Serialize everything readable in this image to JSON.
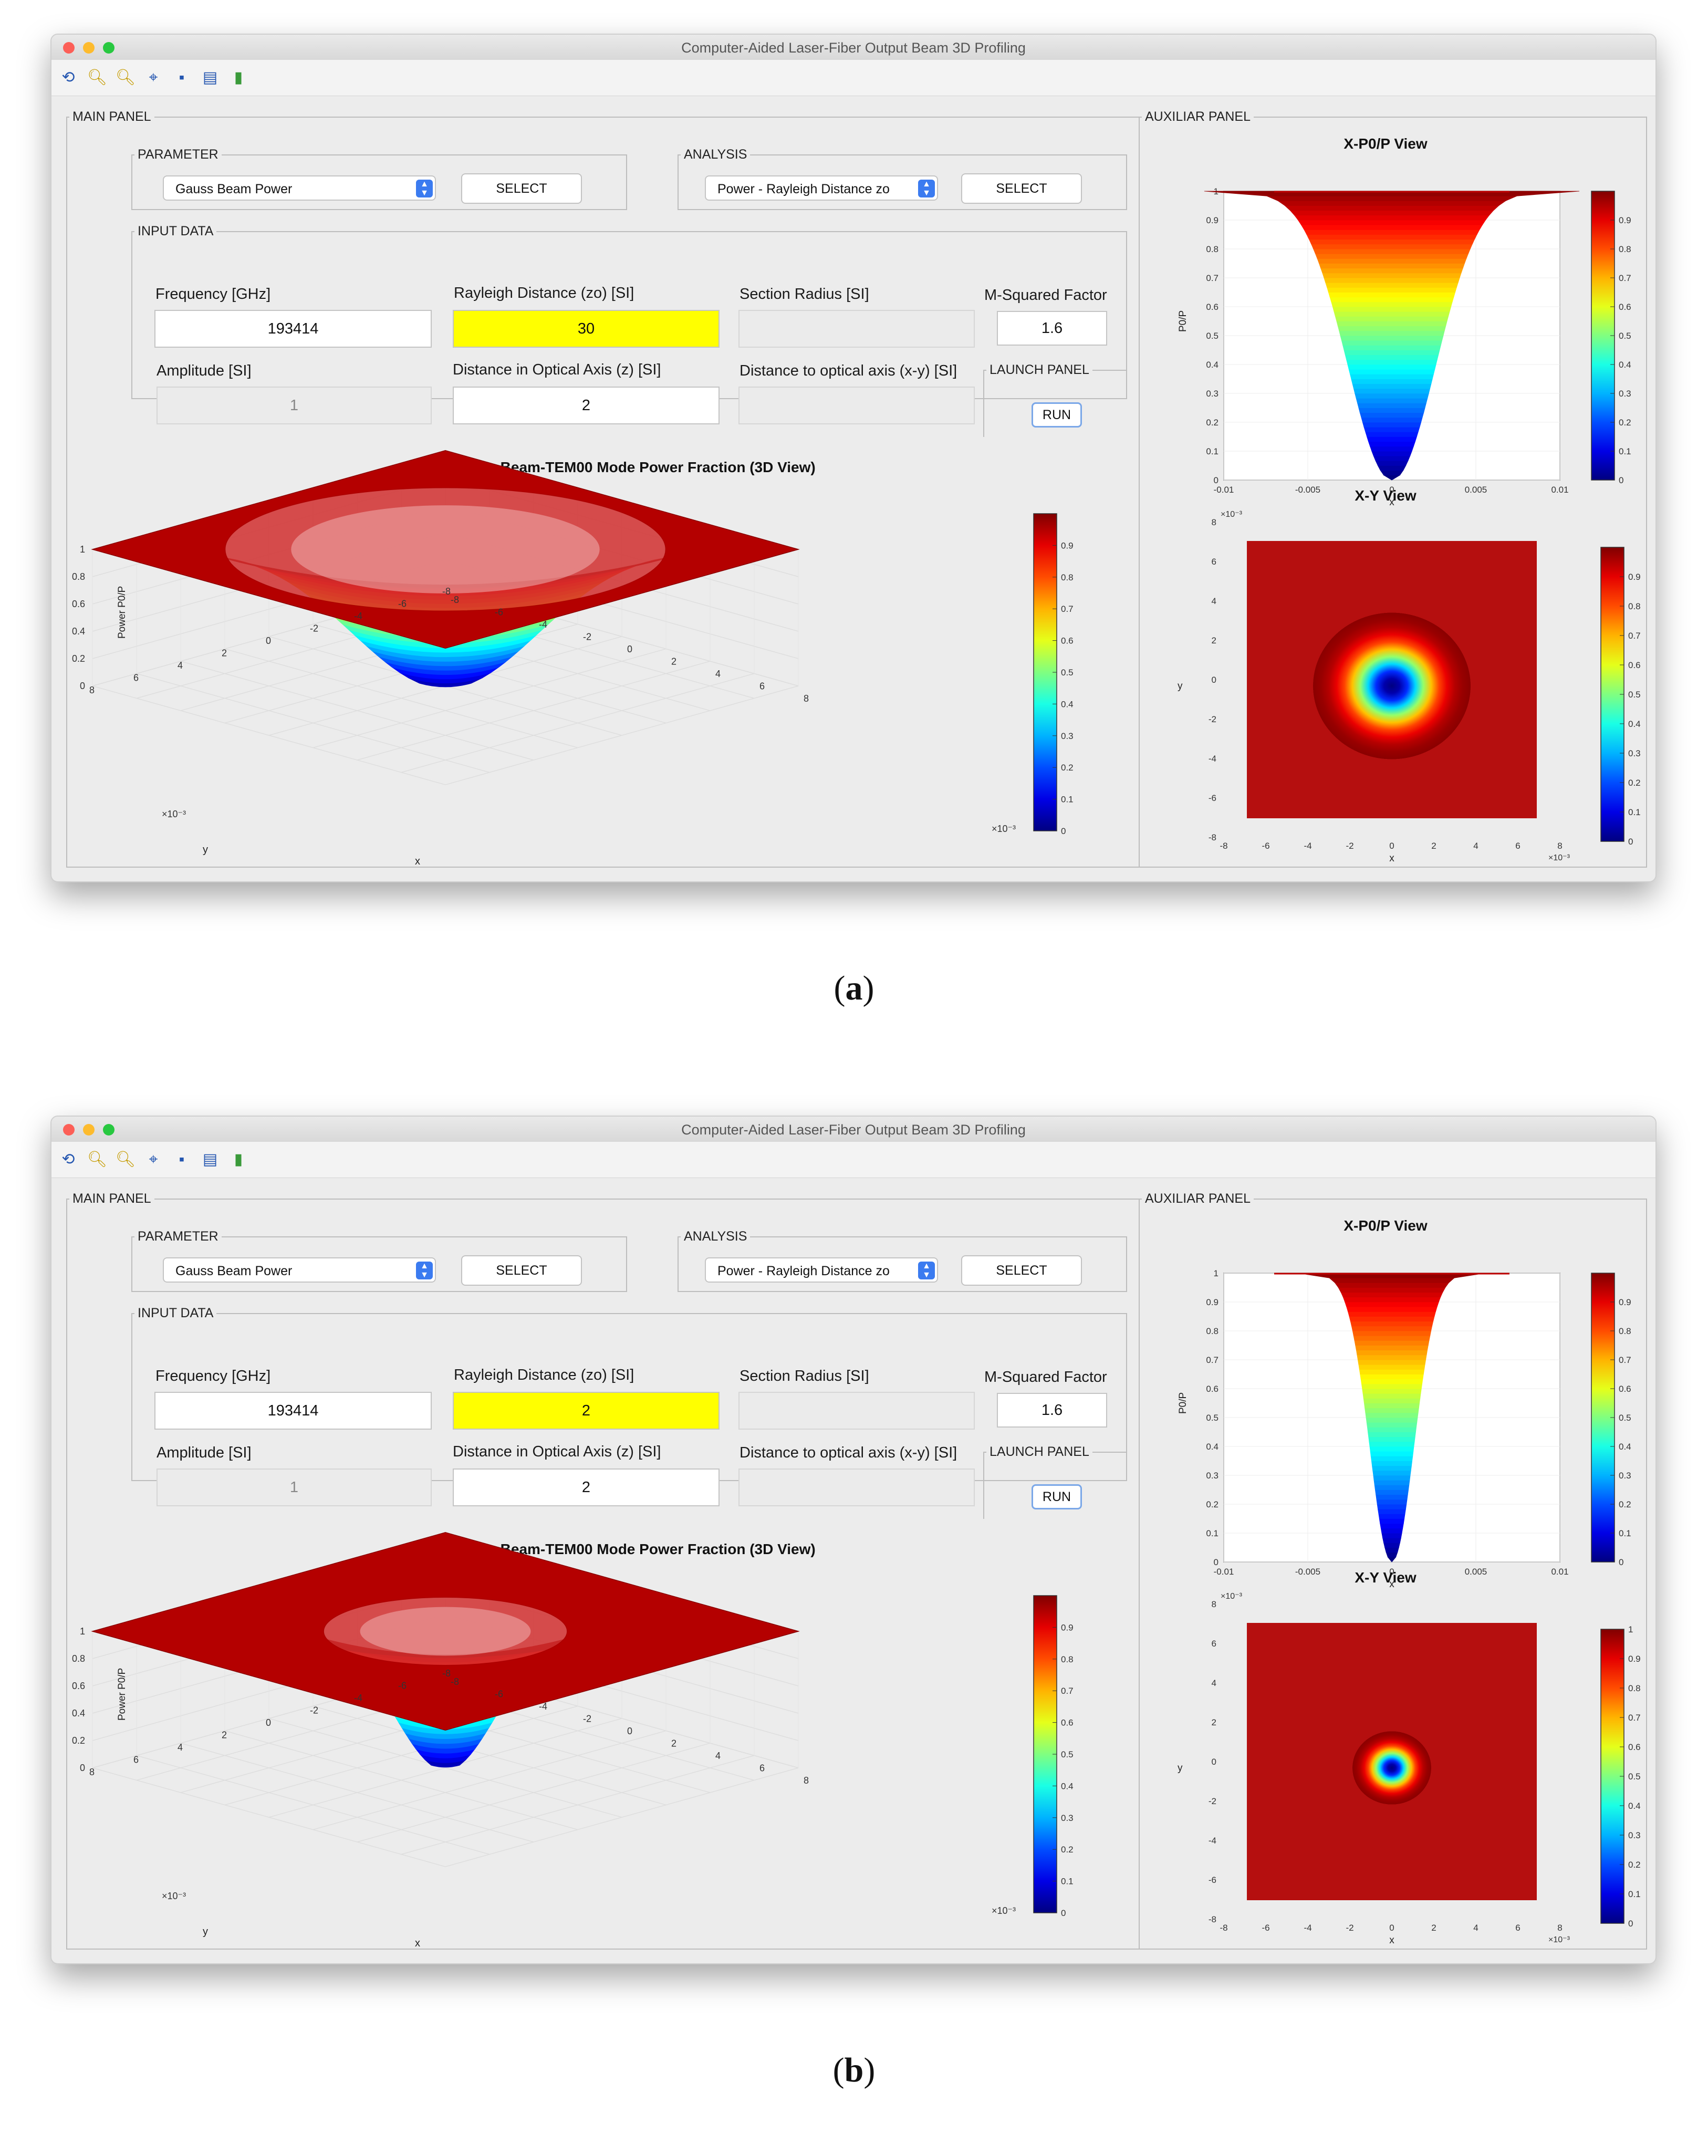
{
  "window": {
    "title": "Computer-Aided Laser-Fiber Output Beam 3D Profiling"
  },
  "toolbar": {
    "icons": [
      "rotate-icon",
      "zoom-in-icon",
      "zoom-out-icon",
      "data-cursor-icon",
      "save-icon",
      "insert-legend-icon",
      "insert-colorbar-icon"
    ]
  },
  "main_panel": {
    "legend": "MAIN PANEL",
    "parameter": {
      "legend": "PARAMETER",
      "selected": "Gauss Beam Power",
      "button": "SELECT"
    },
    "analysis": {
      "legend": "ANALYSIS",
      "selected": "Power - Rayleigh Distance zo",
      "button": "SELECT"
    },
    "input_data": {
      "legend": "INPUT DATA",
      "frequency_label": "Frequency [GHz]",
      "frequency_value": "193414",
      "rayleigh_label": "Rayleigh Distance (zo) [SI]",
      "section_radius_label": "Section Radius [SI]",
      "section_radius_value": "",
      "msquared_label": "M-Squared Factor",
      "msquared_value": "1.6",
      "amplitude_label": "Amplitude [SI]",
      "amplitude_value": "1",
      "optical_axis_label": "Distance in Optical Axis (z) [SI]",
      "optical_axis_value": "2",
      "xy_distance_label": "Distance to optical axis (x-y) [SI]",
      "xy_distance_value": ""
    },
    "launch": {
      "legend": "LAUNCH PANEL",
      "button": "RUN"
    },
    "plot3d": {
      "title": "Gauss Beam-TEM00 Mode Power Fraction (3D View)",
      "zlabel": "Power P0/P",
      "xlabel": "x",
      "ylabel": "y",
      "exp_label": "×10⁻³",
      "z_ticks": [
        "0",
        "0.2",
        "0.4",
        "0.6",
        "0.8",
        "1"
      ],
      "y_ticks": [
        "8",
        "6",
        "4",
        "2",
        "0",
        "-2",
        "-4",
        "-6",
        "-8"
      ],
      "x_ticks": [
        "-8",
        "-6",
        "-4",
        "-2",
        "0",
        "2",
        "4",
        "6",
        "8"
      ],
      "colorbar_ticks": [
        "0",
        "0.1",
        "0.2",
        "0.3",
        "0.4",
        "0.5",
        "0.6",
        "0.7",
        "0.8",
        "0.9"
      ]
    }
  },
  "aux_panel": {
    "legend": "AUXILIAR PANEL",
    "xp_plot": {
      "title": "X-P0/P View",
      "ylabel": "P0/P",
      "xlabel": "x",
      "y_ticks": [
        "0",
        "0.1",
        "0.2",
        "0.3",
        "0.4",
        "0.5",
        "0.6",
        "0.7",
        "0.8",
        "0.9",
        "1"
      ],
      "x_ticks": [
        "-0.01",
        "-0.005",
        "0",
        "0.005",
        "0.01"
      ],
      "colorbar_ticks": [
        "0",
        "0.1",
        "0.2",
        "0.3",
        "0.4",
        "0.5",
        "0.6",
        "0.7",
        "0.8",
        "0.9"
      ]
    },
    "xy_plot": {
      "title": "X-Y View",
      "ylabel": "y",
      "xlabel": "x",
      "exp_label": "×10⁻³",
      "y_ticks": [
        "8",
        "6",
        "4",
        "2",
        "0",
        "-2",
        "-4",
        "-6",
        "-8"
      ],
      "x_ticks": [
        "-8",
        "-6",
        "-4",
        "-2",
        "0",
        "2",
        "4",
        "6",
        "8"
      ],
      "colorbar_ticks": [
        "0",
        "0.1",
        "0.2",
        "0.3",
        "0.4",
        "0.5",
        "0.6",
        "0.7",
        "0.8",
        "0.9"
      ],
      "colorbar_top_tick_b": "1"
    }
  },
  "screens": [
    {
      "caption_open": "(",
      "caption_letter": "a",
      "caption_close": ")",
      "rayleigh_value": "30"
    },
    {
      "caption_open": "(",
      "caption_letter": "b",
      "caption_close": ")",
      "rayleigh_value": "2"
    }
  ],
  "colors": {
    "accent": "#3b7bf0",
    "highlight": "#ffff00",
    "surface_flat": "#b40000"
  },
  "chart_data": [
    {
      "type": "surface",
      "screen": "a",
      "title": "Gauss Beam-TEM00 Mode Power Fraction (3D View)",
      "zlabel": "Power P0/P",
      "xlim": [
        -8,
        8
      ],
      "ylim": [
        -8,
        8
      ],
      "zlim": [
        0,
        1
      ],
      "x_unit_exponent": -3,
      "relative_beam_width": 1.0
    },
    {
      "type": "line",
      "screen": "a",
      "title": "X-P0/P View",
      "ylabel": "P0/P",
      "xlabel": "x",
      "xlim": [
        -0.01,
        0.01
      ],
      "ylim": [
        0,
        1
      ],
      "relative_beam_width": 1.0
    },
    {
      "type": "heatmap",
      "screen": "a",
      "title": "X-Y View",
      "xlim": [
        -8,
        8
      ],
      "ylim": [
        -8,
        8
      ],
      "relative_beam_width": 1.0
    },
    {
      "type": "surface",
      "screen": "b",
      "title": "Gauss Beam-TEM00 Mode Power Fraction (3D View)",
      "zlabel": "Power P0/P",
      "xlim": [
        -8,
        8
      ],
      "ylim": [
        -8,
        8
      ],
      "zlim": [
        0,
        1
      ],
      "x_unit_exponent": -3,
      "relative_beam_width": 0.55
    },
    {
      "type": "line",
      "screen": "b",
      "title": "X-P0/P View",
      "ylabel": "P0/P",
      "xlabel": "x",
      "xlim": [
        -0.01,
        0.01
      ],
      "ylim": [
        0,
        1
      ],
      "relative_beam_width": 0.5
    },
    {
      "type": "heatmap",
      "screen": "b",
      "title": "X-Y View",
      "xlim": [
        -8,
        8
      ],
      "ylim": [
        -8,
        8
      ],
      "relative_beam_width": 0.5
    }
  ]
}
